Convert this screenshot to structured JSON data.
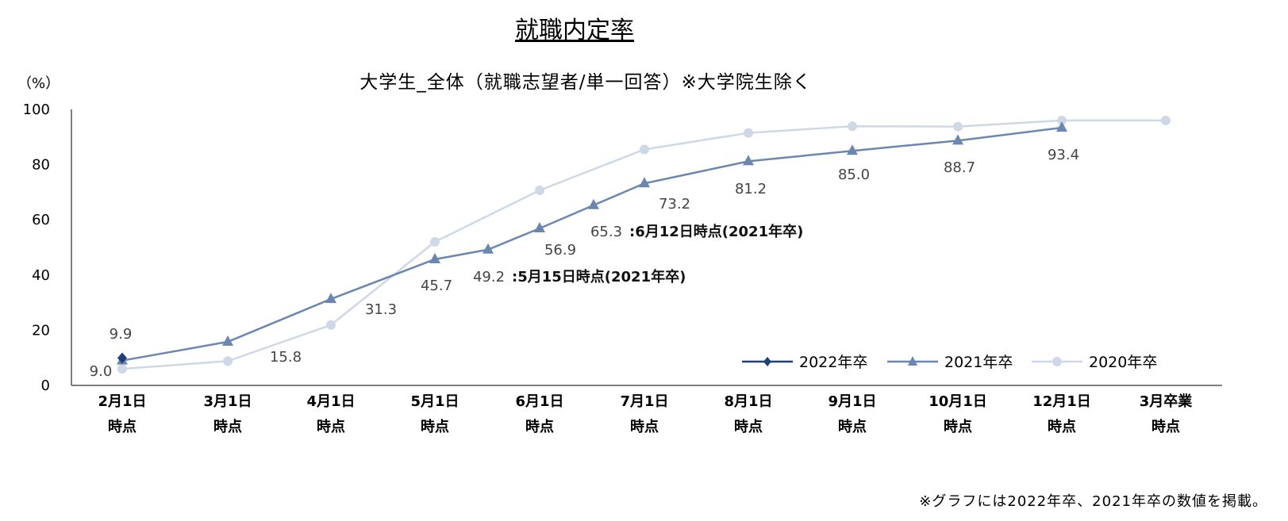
{
  "chart_data": {
    "type": "line",
    "title": "就職内定率",
    "subtitle": "大学生_全体（就職志望者/単一回答）※大学院生除く",
    "unit_label": "（%）",
    "ylim": [
      0,
      100
    ],
    "yticks": [
      "0",
      "20",
      "40",
      "60",
      "80",
      "100"
    ],
    "grid": false,
    "legend_position": "bottom-right",
    "x_labels": [
      [
        "2月1日",
        "時点"
      ],
      [
        "3月1日",
        "時点"
      ],
      [
        "4月1日",
        "時点"
      ],
      [
        "5月1日",
        "時点"
      ],
      [
        "6月1日",
        "時点"
      ],
      [
        "7月1日",
        "時点"
      ],
      [
        "8月1日",
        "時点"
      ],
      [
        "9月1日",
        "時点"
      ],
      [
        "10月1日",
        "時点"
      ],
      [
        "12月1日",
        "時点"
      ],
      [
        "3月卒業",
        "時点"
      ]
    ],
    "series": [
      {
        "name": "2022年卒",
        "color": "#1f3f7a",
        "marker": "diamond",
        "points": [
          {
            "x": "2月1日時点",
            "y": 9.9
          }
        ]
      },
      {
        "name": "2021年卒",
        "color": "#6b86b0",
        "marker": "triangle",
        "points": [
          {
            "x": "2月1日時点",
            "y": 9.0
          },
          {
            "x": "3月1日時点",
            "y": 15.8
          },
          {
            "x": "4月1日時点",
            "y": 31.3
          },
          {
            "x": "5月1日時点",
            "y": 45.7
          },
          {
            "x": "5月15日時点",
            "y": 49.2
          },
          {
            "x": "6月1日時点",
            "y": 56.9
          },
          {
            "x": "6月12日時点",
            "y": 65.3
          },
          {
            "x": "7月1日時点",
            "y": 73.2
          },
          {
            "x": "8月1日時点",
            "y": 81.2
          },
          {
            "x": "9月1日時点",
            "y": 85.0
          },
          {
            "x": "10月1日時点",
            "y": 88.7
          },
          {
            "x": "12月1日時点",
            "y": 93.4
          }
        ]
      },
      {
        "name": "2020年卒",
        "color": "#cfd8e6",
        "marker": "circle",
        "points": [
          {
            "x": "2月1日時点",
            "y": 6.0
          },
          {
            "x": "3月1日時点",
            "y": 8.8
          },
          {
            "x": "4月1日時点",
            "y": 21.9
          },
          {
            "x": "5月1日時点",
            "y": 52.0
          },
          {
            "x": "6月1日時点",
            "y": 70.7
          },
          {
            "x": "7月1日時点",
            "y": 85.5
          },
          {
            "x": "8月1日時点",
            "y": 91.5
          },
          {
            "x": "9月1日時点",
            "y": 93.9
          },
          {
            "x": "10月1日時点",
            "y": 93.8
          },
          {
            "x": "12月1日時点",
            "y": 96.0
          },
          {
            "x": "3月卒業時点",
            "y": 96.0
          }
        ]
      }
    ],
    "data_labels": [
      {
        "series": "2022年卒",
        "x": "2月1日時点",
        "text": "9.9"
      },
      {
        "series": "2021年卒",
        "x": "2月1日時点",
        "text": "9.0"
      },
      {
        "series": "2021年卒",
        "x": "3月1日時点",
        "text": "15.8"
      },
      {
        "series": "2021年卒",
        "x": "4月1日時点",
        "text": "31.3"
      },
      {
        "series": "2021年卒",
        "x": "5月1日時点",
        "text": "45.7"
      },
      {
        "series": "2021年卒",
        "x": "5月15日時点",
        "text": "49.2"
      },
      {
        "series": "2021年卒",
        "x": "6月1日時点",
        "text": "56.9"
      },
      {
        "series": "2021年卒",
        "x": "6月12日時点",
        "text": "65.3"
      },
      {
        "series": "2021年卒",
        "x": "7月1日時点",
        "text": "73.2"
      },
      {
        "series": "2021年卒",
        "x": "8月1日時点",
        "text": "81.2"
      },
      {
        "series": "2021年卒",
        "x": "9月1日時点",
        "text": "85.0"
      },
      {
        "series": "2021年卒",
        "x": "10月1日時点",
        "text": "88.7"
      },
      {
        "series": "2021年卒",
        "x": "12月1日時点",
        "text": "93.4"
      }
    ],
    "annotations": [
      {
        "x": "5月15日時点",
        "text": ":5月15日時点(2021年卒)"
      },
      {
        "x": "6月12日時点",
        "text": ":6月12日時点(2021年卒)"
      }
    ]
  },
  "footnote": "※グラフには2022年卒、2021年卒の数値を掲載。"
}
